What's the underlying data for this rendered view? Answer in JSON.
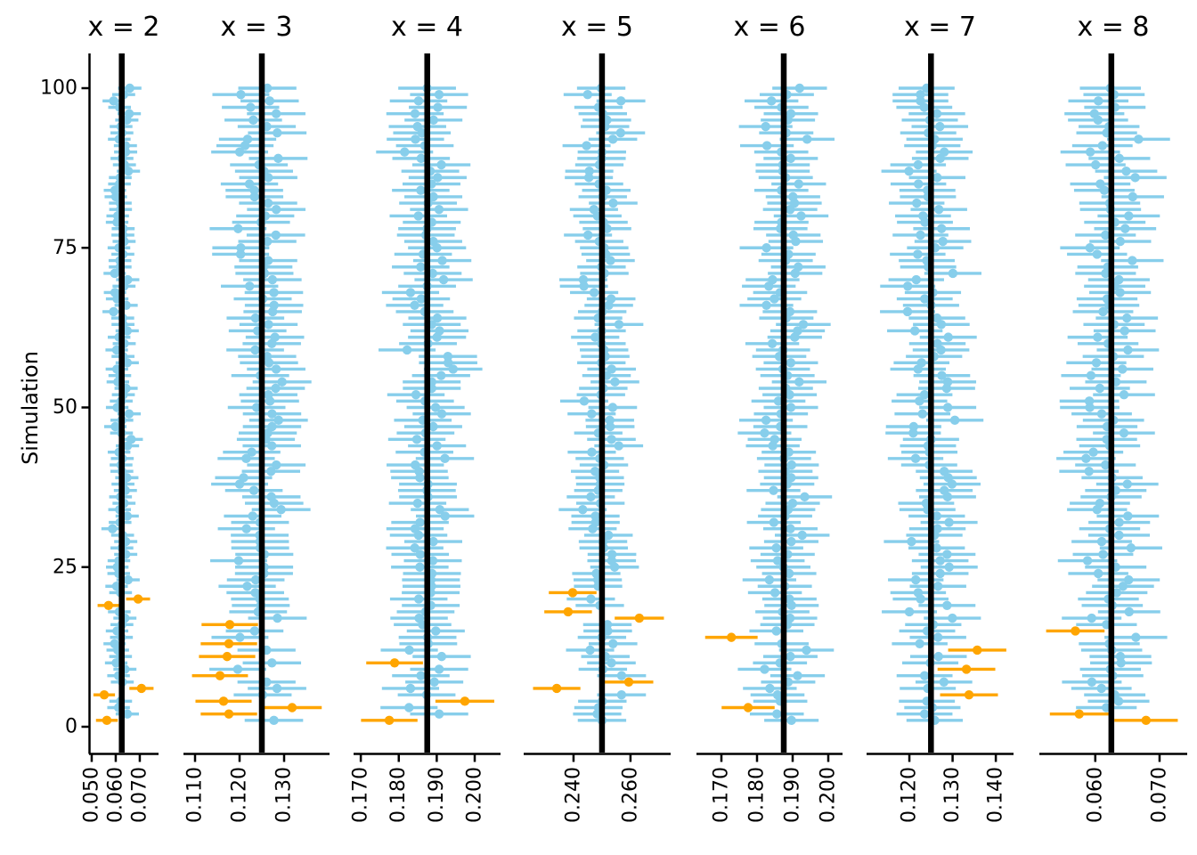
{
  "figure": {
    "y_axis": {
      "title": "Simulation",
      "tick_labels": [
        "0",
        "25",
        "50",
        "75",
        "100"
      ],
      "tick_values": [
        0,
        25,
        50,
        75,
        100
      ]
    },
    "colors": {
      "covered_interval": "#87CEEB",
      "missed_interval": "#FFA500",
      "true_value_line": "#000000",
      "axis": "#000000",
      "background": "#FFFFFF"
    }
  },
  "chart_data": {
    "type": "faceted-interval-coverage-plot",
    "facet_variable": "x",
    "n_simulations_per_facet": 100,
    "ylabel": "Simulation",
    "ylim": [
      0,
      100
    ],
    "legend": "none",
    "grid": "off",
    "panels": [
      {
        "label": "x = 2",
        "true_value": 0.0625,
        "x_tick_labels": [
          "0.050",
          "0.060",
          "0.070"
        ],
        "x_tick_values": [
          0.05,
          0.06,
          0.07
        ],
        "x_domain": [
          0.0489,
          0.0778
        ],
        "half_width_at_true": 0.00475,
        "missed_intervals": [
          {
            "sim": 1,
            "estimate": 0.0563
          },
          {
            "sim": 5,
            "estimate": 0.0552
          },
          {
            "sim": 6,
            "estimate": 0.0707
          },
          {
            "sim": 19,
            "estimate": 0.057
          },
          {
            "sim": 20,
            "estimate": 0.0693
          }
        ]
      },
      {
        "label": "x = 3",
        "true_value": 0.125,
        "x_tick_labels": [
          "0.110",
          "0.120",
          "0.130"
        ],
        "x_tick_values": [
          0.11,
          0.12,
          0.13
        ],
        "x_domain": [
          0.1074,
          0.1402
        ],
        "half_width_at_true": 0.0065,
        "missed_intervals": [
          {
            "sim": 2,
            "estimate": 0.1176
          },
          {
            "sim": 3,
            "estimate": 0.1318
          },
          {
            "sim": 4,
            "estimate": 0.1164
          },
          {
            "sim": 8,
            "estimate": 0.1156
          },
          {
            "sim": 11,
            "estimate": 0.1172
          },
          {
            "sim": 13,
            "estimate": 0.1176
          },
          {
            "sim": 16,
            "estimate": 0.1178
          }
        ]
      },
      {
        "label": "x = 4",
        "true_value": 0.1875,
        "x_tick_labels": [
          "0.170",
          "0.180",
          "0.190",
          "0.200"
        ],
        "x_tick_values": [
          0.17,
          0.18,
          0.19,
          0.2
        ],
        "x_domain": [
          0.1681,
          0.2068
        ],
        "half_width_at_true": 0.0076,
        "missed_intervals": [
          {
            "sim": 1,
            "estimate": 0.1775
          },
          {
            "sim": 4,
            "estimate": 0.1974
          },
          {
            "sim": 10,
            "estimate": 0.1789
          }
        ]
      },
      {
        "label": "x = 5",
        "true_value": 0.25,
        "x_tick_labels": [
          "0.240",
          "0.260"
        ],
        "x_tick_values": [
          0.24,
          0.26
        ],
        "x_domain": [
          0.2225,
          0.2741
        ],
        "half_width_at_true": 0.0085,
        "missed_intervals": [
          {
            "sim": 6,
            "estimate": 0.2341
          },
          {
            "sim": 7,
            "estimate": 0.2594
          },
          {
            "sim": 17,
            "estimate": 0.2631
          },
          {
            "sim": 18,
            "estimate": 0.2381
          },
          {
            "sim": 21,
            "estimate": 0.2397
          }
        ]
      },
      {
        "label": "x = 6",
        "true_value": 0.1875,
        "x_tick_labels": [
          "0.170",
          "0.180",
          "0.190",
          "0.200"
        ],
        "x_tick_values": [
          0.17,
          0.18,
          0.19,
          0.2
        ],
        "x_domain": [
          0.163,
          0.204
        ],
        "half_width_at_true": 0.0076,
        "missed_intervals": [
          {
            "sim": 3,
            "estimate": 0.1775
          },
          {
            "sim": 14,
            "estimate": 0.1728
          }
        ]
      },
      {
        "label": "x = 7",
        "true_value": 0.125,
        "x_tick_labels": [
          "0.120",
          "0.130",
          "0.140"
        ],
        "x_tick_values": [
          0.12,
          0.13,
          0.14
        ],
        "x_domain": [
          0.1101,
          0.1441
        ],
        "half_width_at_true": 0.0065,
        "missed_intervals": [
          {
            "sim": 5,
            "estimate": 0.1338
          },
          {
            "sim": 9,
            "estimate": 0.1332
          },
          {
            "sim": 12,
            "estimate": 0.1357
          }
        ]
      },
      {
        "label": "x = 8",
        "true_value": 0.0625,
        "x_tick_labels": [
          "0.060",
          "0.070"
        ],
        "x_tick_values": [
          0.06,
          0.07
        ],
        "x_domain": [
          0.0513,
          0.0743
        ],
        "half_width_at_true": 0.00475,
        "missed_intervals": [
          {
            "sim": 1,
            "estimate": 0.0679
          },
          {
            "sim": 2,
            "estimate": 0.0575
          },
          {
            "sim": 15,
            "estimate": 0.0569
          }
        ]
      }
    ],
    "covered_interval_generation": {
      "seed": 42
    }
  }
}
